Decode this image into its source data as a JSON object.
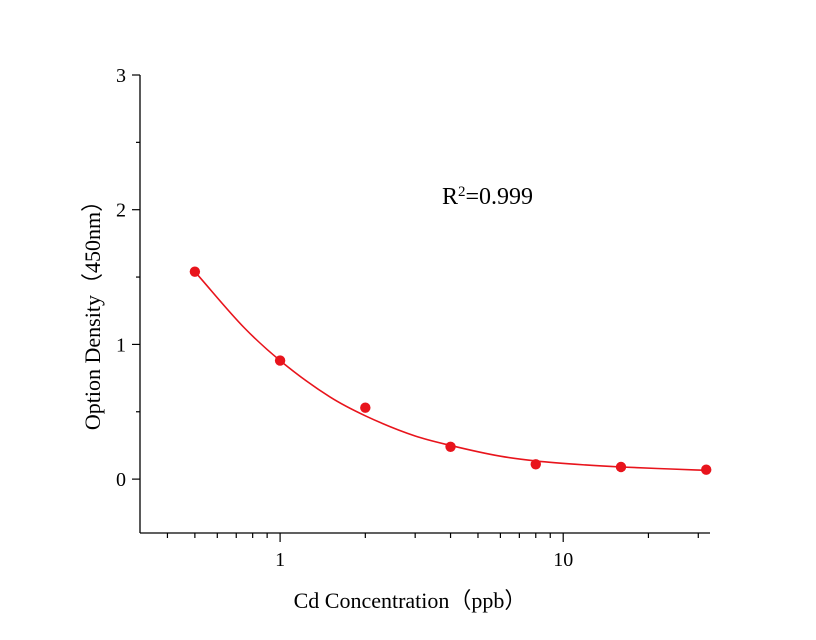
{
  "chart_data": {
    "type": "scatter",
    "xlabel": "Cd Concentration（ppb）",
    "ylabel": "Option Density（450nm）",
    "x_scale": "log",
    "xlim": [
      0.32,
      33
    ],
    "ylim": [
      -0.4,
      3
    ],
    "x_ticks": [
      {
        "value": 1,
        "label": "1"
      },
      {
        "value": 10,
        "label": "10"
      }
    ],
    "y_ticks": [
      {
        "value": 0,
        "label": "0"
      },
      {
        "value": 1,
        "label": "1"
      },
      {
        "value": 2,
        "label": "2"
      },
      {
        "value": 3,
        "label": "3"
      }
    ],
    "grid": false,
    "series": [
      {
        "kind": "points",
        "color": "#e8141c",
        "x": [
          0.5,
          1,
          2,
          4,
          8,
          16,
          32
        ],
        "y": [
          1.54,
          0.88,
          0.53,
          0.24,
          0.11,
          0.09,
          0.07
        ]
      },
      {
        "kind": "fitted-curve",
        "color": "#e8141c",
        "x": [
          0.5,
          0.75,
          1,
          1.5,
          2,
          3,
          4,
          6,
          8,
          12,
          16,
          24,
          32
        ],
        "y": [
          1.54,
          1.12,
          0.88,
          0.61,
          0.47,
          0.32,
          0.25,
          0.17,
          0.135,
          0.105,
          0.09,
          0.075,
          0.065
        ]
      }
    ],
    "annotations": [
      {
        "base": "R",
        "superscript": "2",
        "rest": "=0.999"
      }
    ]
  }
}
